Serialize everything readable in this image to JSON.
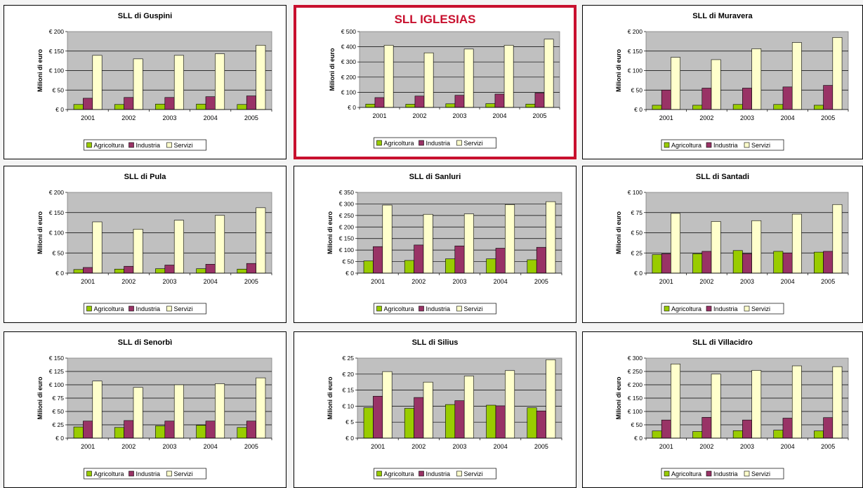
{
  "colors": {
    "Agricoltura": "#99cc00",
    "Industria": "#993366",
    "Servizi": "#ffffcc",
    "plot_bg": "#c0c0c0",
    "highlight": "#c8102e"
  },
  "chart_data": [
    {
      "type": "bar",
      "title": "SLL di Guspini",
      "ylabel": "Milioni di euro",
      "categories": [
        "2001",
        "2002",
        "2003",
        "2004",
        "2005"
      ],
      "ylim": [
        0,
        200
      ],
      "yticks": [
        "€ 0",
        "€ 50",
        "€ 100",
        "€ 150",
        "€ 200"
      ],
      "series": [
        {
          "name": "Agricoltura",
          "values": [
            13,
            13,
            14,
            14,
            13
          ]
        },
        {
          "name": "Industria",
          "values": [
            29,
            31,
            31,
            33,
            35
          ]
        },
        {
          "name": "Servizi",
          "values": [
            139,
            130,
            139,
            143,
            165
          ]
        }
      ],
      "legend": "bottom",
      "grid": true
    },
    {
      "type": "bar",
      "title": "SLL IGLESIAS",
      "ylabel": "Milioni di euro",
      "highlighted": true,
      "categories": [
        "2001",
        "2002",
        "2003",
        "2004",
        "2005"
      ],
      "ylim": [
        0,
        500
      ],
      "yticks": [
        "€ 0",
        "€ 100",
        "€ 200",
        "€ 300",
        "€ 400",
        "€ 500"
      ],
      "series": [
        {
          "name": "Agricoltura",
          "values": [
            22,
            21,
            24,
            25,
            22
          ]
        },
        {
          "name": "Industria",
          "values": [
            65,
            75,
            80,
            88,
            95
          ]
        },
        {
          "name": "Servizi",
          "values": [
            410,
            360,
            385,
            410,
            450
          ]
        }
      ],
      "legend": "bottom",
      "grid": true
    },
    {
      "type": "bar",
      "title": "SLL di Muravera",
      "ylabel": "Milioni di euro",
      "categories": [
        "2001",
        "2002",
        "2003",
        "2004",
        "2005"
      ],
      "ylim": [
        0,
        200
      ],
      "yticks": [
        "€ 0",
        "€ 50",
        "€ 100",
        "€ 150",
        "€ 200"
      ],
      "series": [
        {
          "name": "Agricoltura",
          "values": [
            11,
            11,
            13,
            13,
            11
          ]
        },
        {
          "name": "Industria",
          "values": [
            50,
            55,
            55,
            58,
            62
          ]
        },
        {
          "name": "Servizi",
          "values": [
            134,
            128,
            156,
            172,
            185
          ]
        }
      ],
      "legend": "bottom",
      "grid": true
    },
    {
      "type": "bar",
      "title": "SLL di Pula",
      "ylabel": "Milioni di euro",
      "categories": [
        "2001",
        "2002",
        "2003",
        "2004",
        "2005"
      ],
      "ylim": [
        0,
        200
      ],
      "yticks": [
        "€ 0",
        "€ 50",
        "€ 100",
        "€ 150",
        "€ 200"
      ],
      "series": [
        {
          "name": "Agricoltura",
          "values": [
            9,
            10,
            11,
            11,
            10
          ]
        },
        {
          "name": "Industria",
          "values": [
            14,
            17,
            20,
            22,
            24
          ]
        },
        {
          "name": "Servizi",
          "values": [
            127,
            109,
            131,
            143,
            162
          ]
        }
      ],
      "legend": "bottom",
      "grid": true
    },
    {
      "type": "bar",
      "title": "SLL di  Sanluri",
      "ylabel": "Milioni di euro",
      "categories": [
        "2001",
        "2002",
        "2003",
        "2004",
        "2005"
      ],
      "ylim": [
        0,
        350
      ],
      "yticks": [
        "€ 0",
        "€ 50",
        "€ 100",
        "€ 150",
        "€ 200",
        "€ 250",
        "€ 300",
        "€ 350"
      ],
      "series": [
        {
          "name": "Agricoltura",
          "values": [
            53,
            55,
            62,
            62,
            58
          ]
        },
        {
          "name": "Industria",
          "values": [
            115,
            122,
            118,
            108,
            112
          ]
        },
        {
          "name": "Servizi",
          "values": [
            295,
            255,
            257,
            297,
            310
          ]
        }
      ],
      "legend": "bottom",
      "grid": true
    },
    {
      "type": "bar",
      "title": "SLL di Santadi",
      "ylabel": "Milioni di euro",
      "categories": [
        "2001",
        "2002",
        "2003",
        "2004",
        "2005"
      ],
      "ylim": [
        0,
        100
      ],
      "yticks": [
        "€ 0",
        "€ 25",
        "€ 50",
        "€ 75",
        "€ 100"
      ],
      "series": [
        {
          "name": "Agricoltura",
          "values": [
            23,
            24,
            28,
            27,
            26
          ]
        },
        {
          "name": "Industria",
          "values": [
            24,
            27,
            24,
            25,
            27
          ]
        },
        {
          "name": "Servizi",
          "values": [
            74,
            64,
            65,
            73,
            85
          ]
        }
      ],
      "legend": "bottom",
      "grid": true
    },
    {
      "type": "bar",
      "title": "SLL di Senorbì",
      "ylabel": "Milioni di euro",
      "categories": [
        "2001",
        "2002",
        "2003",
        "2004",
        "2005"
      ],
      "ylim": [
        0,
        150
      ],
      "yticks": [
        "€ 0",
        "€ 25",
        "€ 50",
        "€ 75",
        "€ 100",
        "€ 125",
        "€ 150"
      ],
      "series": [
        {
          "name": "Agricoltura",
          "values": [
            21,
            20,
            23,
            24,
            20
          ]
        },
        {
          "name": "Industria",
          "values": [
            32,
            33,
            32,
            32,
            32
          ]
        },
        {
          "name": "Servizi",
          "values": [
            107,
            95,
            100,
            102,
            113
          ]
        }
      ],
      "legend": "bottom",
      "grid": true
    },
    {
      "type": "bar",
      "title": "SLL di Silius",
      "ylabel": "Milioni di euro",
      "categories": [
        "2001",
        "2002",
        "2003",
        "2004",
        "2005"
      ],
      "ylim": [
        0,
        25
      ],
      "yticks": [
        "€ 0",
        "€ 5",
        "€ 10",
        "€ 15",
        "€ 20",
        "€ 25"
      ],
      "series": [
        {
          "name": "Agricoltura",
          "values": [
            9.5,
            9.3,
            10.5,
            10.3,
            9.5
          ]
        },
        {
          "name": "Industria",
          "values": [
            13.1,
            12.7,
            11.7,
            10.1,
            8.5
          ]
        },
        {
          "name": "Servizi",
          "values": [
            20.8,
            17.5,
            19.4,
            21.1,
            24.5
          ]
        }
      ],
      "legend": "bottom",
      "grid": true
    },
    {
      "type": "bar",
      "title": "SLL di Villacidro",
      "ylabel": "Milioni di euro",
      "categories": [
        "2001",
        "2002",
        "2003",
        "2004",
        "2005"
      ],
      "ylim": [
        0,
        300
      ],
      "yticks": [
        "€ 0",
        "€ 50",
        "€ 100",
        "€ 150",
        "€ 200",
        "€ 250",
        "€ 300"
      ],
      "series": [
        {
          "name": "Agricoltura",
          "values": [
            27,
            25,
            28,
            30,
            27
          ]
        },
        {
          "name": "Industria",
          "values": [
            68,
            78,
            68,
            75,
            77
          ]
        },
        {
          "name": "Servizi",
          "values": [
            278,
            240,
            254,
            271,
            268
          ]
        }
      ],
      "legend": "bottom",
      "grid": true
    }
  ]
}
